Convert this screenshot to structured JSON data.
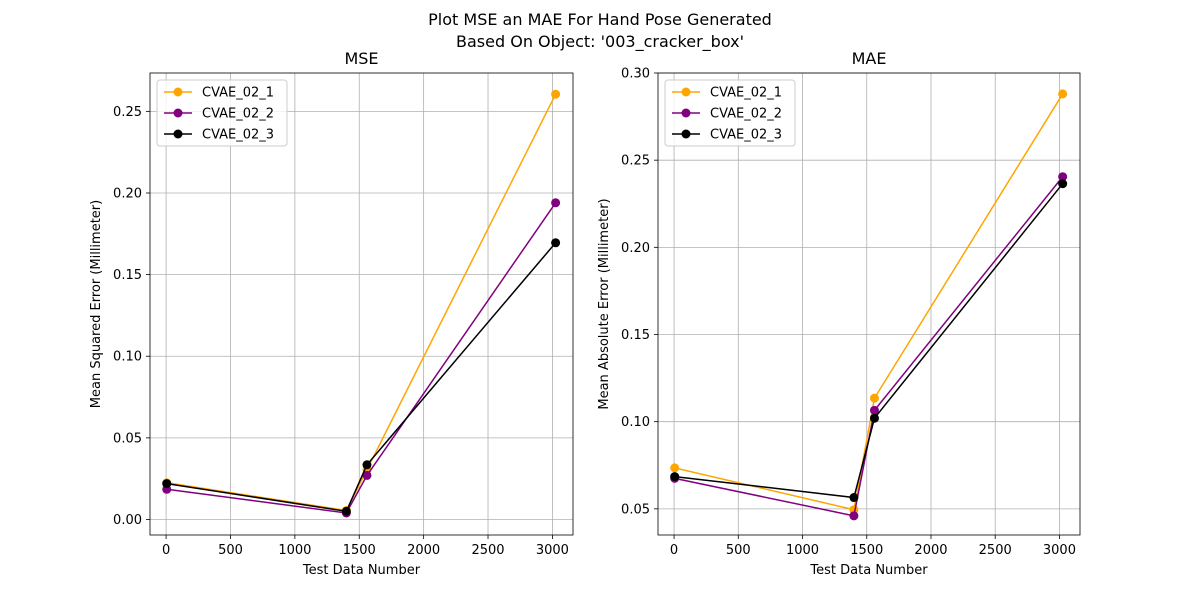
{
  "figure": {
    "title_line1": "Plot MSE an MAE For Hand Pose Generated",
    "title_line2": "Based On Object: '003_cracker_box'"
  },
  "chart_data": [
    {
      "type": "line",
      "title": "MSE",
      "xlabel": "Test Data Number",
      "ylabel": "Mean Squared Error (Millimeter)",
      "xlim": [
        -125,
        3160
      ],
      "ylim": [
        -0.0095,
        0.2735
      ],
      "xticks": [
        0,
        500,
        1000,
        1500,
        2000,
        2500,
        3000
      ],
      "xtick_labels": [
        "0",
        "500",
        "1000",
        "1500",
        "2000",
        "2500",
        "3000"
      ],
      "yticks": [
        0.0,
        0.05,
        0.1,
        0.15,
        0.2,
        0.25
      ],
      "ytick_labels": [
        "0.00",
        "0.05",
        "0.10",
        "0.15",
        "0.20",
        "0.25"
      ],
      "grid": true,
      "legend_position": "top-left",
      "x": [
        5,
        1400,
        1560,
        3025
      ],
      "series": [
        {
          "name": "CVAE_02_1",
          "color": "#ffa500",
          "values": [
            0.0225,
            0.0055,
            0.0305,
            0.2605
          ]
        },
        {
          "name": "CVAE_02_2",
          "color": "#800080",
          "values": [
            0.0185,
            0.004,
            0.027,
            0.194
          ]
        },
        {
          "name": "CVAE_02_3",
          "color": "#000000",
          "values": [
            0.022,
            0.005,
            0.0335,
            0.1695
          ]
        }
      ]
    },
    {
      "type": "line",
      "title": "MAE",
      "xlabel": "Test Data Number",
      "ylabel": "Mean Absolute Error (Millimeter)",
      "xlim": [
        -125,
        3160
      ],
      "ylim": [
        0.035,
        0.3
      ],
      "xticks": [
        0,
        500,
        1000,
        1500,
        2000,
        2500,
        3000
      ],
      "xtick_labels": [
        "0",
        "500",
        "1000",
        "1500",
        "2000",
        "2500",
        "3000"
      ],
      "yticks": [
        0.05,
        0.1,
        0.15,
        0.2,
        0.25,
        0.3
      ],
      "ytick_labels": [
        "0.05",
        "0.10",
        "0.15",
        "0.20",
        "0.25",
        "0.30"
      ],
      "grid": true,
      "legend_position": "top-left",
      "x": [
        5,
        1400,
        1560,
        3025
      ],
      "series": [
        {
          "name": "CVAE_02_1",
          "color": "#ffa500",
          "values": [
            0.0735,
            0.0495,
            0.1135,
            0.288
          ]
        },
        {
          "name": "CVAE_02_2",
          "color": "#800080",
          "values": [
            0.0675,
            0.046,
            0.1065,
            0.2405
          ]
        },
        {
          "name": "CVAE_02_3",
          "color": "#000000",
          "values": [
            0.0685,
            0.0565,
            0.102,
            0.2365
          ]
        }
      ]
    }
  ]
}
